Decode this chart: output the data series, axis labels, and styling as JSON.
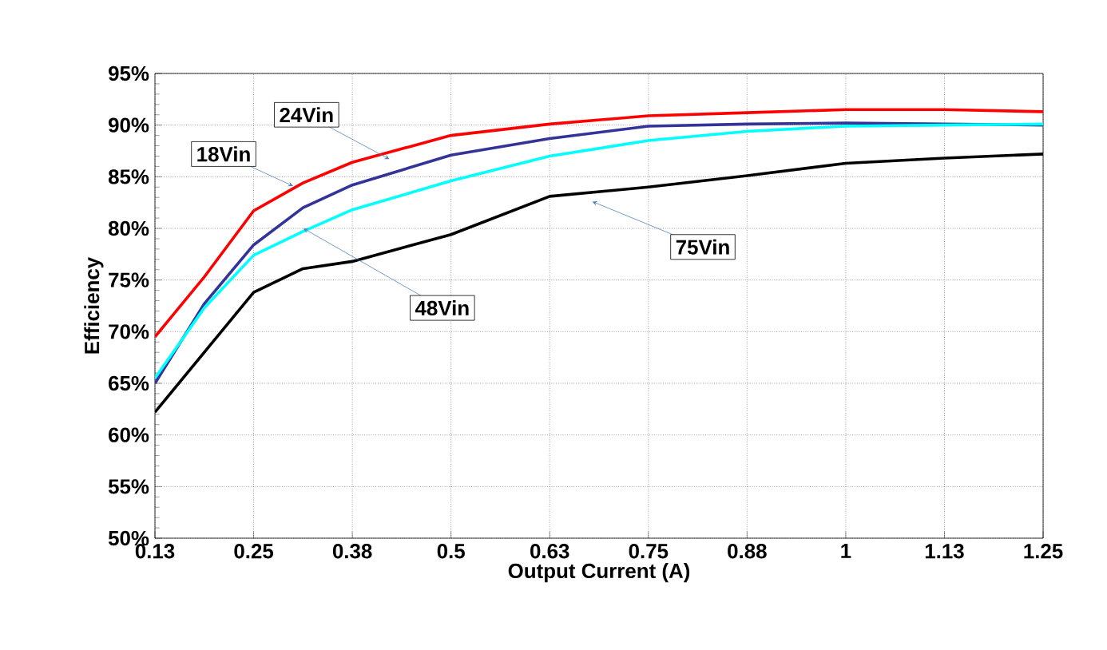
{
  "chart_data": {
    "type": "line",
    "xlabel": "Output Current (A)",
    "ylabel": "Efficiency",
    "x": [
      0.125,
      0.1875,
      0.25,
      0.3125,
      0.375,
      0.5,
      0.625,
      0.75,
      0.875,
      1,
      1.125,
      1.25
    ],
    "series": [
      {
        "name": "18Vin",
        "color": "#ff0000",
        "values": [
          69.5,
          75.3,
          81.7,
          84.4,
          86.4,
          89.0,
          90.1,
          90.9,
          91.2,
          91.5,
          91.5,
          91.3
        ]
      },
      {
        "name": "24Vin",
        "color": "#333399",
        "values": [
          65.0,
          72.7,
          78.4,
          82.0,
          84.2,
          87.1,
          88.7,
          89.9,
          90.1,
          90.2,
          90.1,
          90.0
        ]
      },
      {
        "name": "48Vin",
        "color": "#00ffff",
        "values": [
          65.5,
          72.3,
          77.4,
          79.7,
          81.8,
          84.6,
          87.0,
          88.5,
          89.4,
          89.9,
          90.0,
          90.1
        ]
      },
      {
        "name": "75Vin",
        "color": "#000000",
        "values": [
          62.2,
          68.0,
          73.8,
          76.1,
          76.8,
          79.4,
          83.1,
          84.0,
          85.1,
          86.3,
          86.8,
          87.2
        ]
      }
    ],
    "xlim": [
      0.125,
      1.25
    ],
    "xticks": [
      {
        "value": 0.125,
        "label": "0.13"
      },
      0.25,
      {
        "value": 0.375,
        "label": "0.38"
      },
      0.5,
      {
        "value": 0.625,
        "label": "0.63"
      },
      0.75,
      {
        "value": 0.875,
        "label": "0.88"
      },
      1,
      {
        "value": 1.125,
        "label": "1.13"
      },
      1.25
    ],
    "ylim": [
      50,
      95
    ],
    "yticks": [
      {
        "value": 50,
        "label": "50%"
      },
      {
        "value": 55,
        "label": "55%"
      },
      {
        "value": 60,
        "label": "60%"
      },
      {
        "value": 65,
        "label": "65%"
      },
      {
        "value": 70,
        "label": "70%"
      },
      {
        "value": 75,
        "label": "75%"
      },
      {
        "value": 80,
        "label": "80%"
      },
      {
        "value": 85,
        "label": "85%"
      },
      {
        "value": 90,
        "label": "90%"
      },
      {
        "value": 95,
        "label": "95%"
      }
    ],
    "grid": true,
    "legend": false,
    "marker": "none",
    "line_style": "solid"
  }
}
